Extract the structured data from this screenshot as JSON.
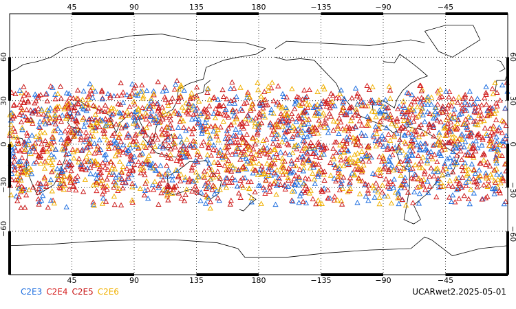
{
  "map": {
    "projection": "cylindrical-equidistant",
    "lon_range": [
      0,
      360
    ],
    "lat_range": [
      -90,
      90
    ],
    "grid": true,
    "top_ticks": [
      "45",
      "90",
      "135",
      "180",
      "−135",
      "−90",
      "−45"
    ],
    "bottom_ticks": [
      "45",
      "90",
      "135",
      "180",
      "−135",
      "−90",
      "−45"
    ],
    "left_ticks": [
      "60",
      "30",
      "0",
      "−30",
      "−60"
    ],
    "right_ticks": [
      "60",
      "30",
      "0",
      "−30",
      "−60"
    ],
    "coastline_color": "#000000",
    "grid_color": "#000000"
  },
  "legend": {
    "items": [
      {
        "label": "C2E3",
        "color": "#1f6fe0"
      },
      {
        "label": "C2E4",
        "color": "#d62020"
      },
      {
        "label": "C2E5",
        "color": "#c81818"
      },
      {
        "label": "C2E6",
        "color": "#f0b000"
      }
    ]
  },
  "caption": "UCARwet2.2025-05-01",
  "observations": {
    "marker": "triangle-open",
    "lat_band": [
      -45,
      45
    ]
  }
}
